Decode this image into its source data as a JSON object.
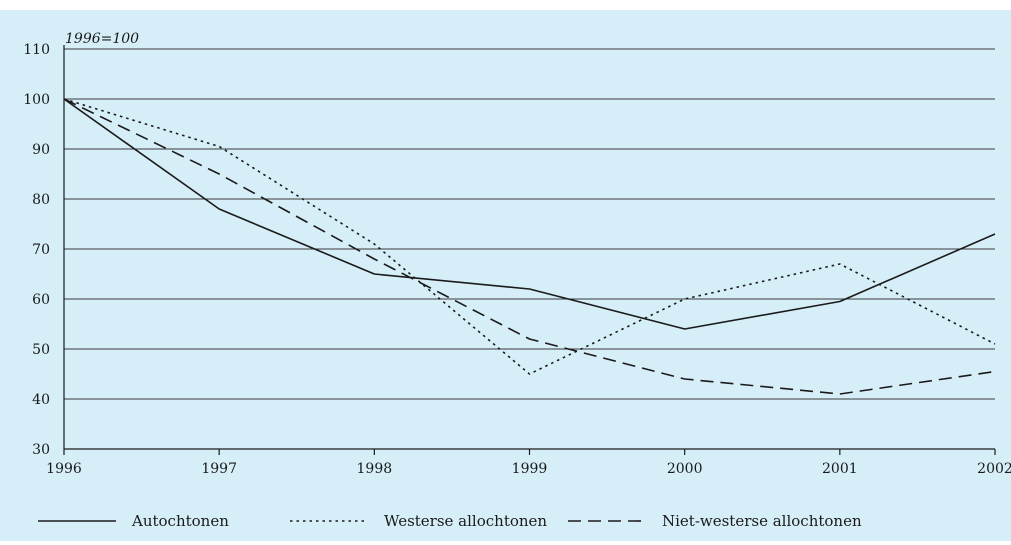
{
  "chart_data": {
    "type": "line",
    "unit_label": "1996=100",
    "x": [
      "1996",
      "1997",
      "1998",
      "1999",
      "2000",
      "2001",
      "2002"
    ],
    "ylim": [
      30,
      110
    ],
    "yticks": [
      "30",
      "40",
      "50",
      "60",
      "70",
      "80",
      "90",
      "100",
      "110"
    ],
    "grid": true,
    "legend_position": "bottom",
    "series": [
      {
        "name": "Autochtonen",
        "dash": "solid",
        "values": [
          100,
          78,
          65,
          62,
          54,
          59.5,
          73
        ]
      },
      {
        "name": "Westerse allochtonen",
        "dash": "dotted",
        "values": [
          100,
          90.5,
          71,
          45,
          60,
          67,
          51
        ]
      },
      {
        "name": "Niet-westerse allochtonen",
        "dash": "dashed",
        "values": [
          100,
          85,
          68,
          52,
          44,
          41,
          45.5
        ]
      }
    ],
    "colors": {
      "background": "#d6eef8",
      "line": "#1a1a1a",
      "grid": "#3a3a3a"
    }
  }
}
